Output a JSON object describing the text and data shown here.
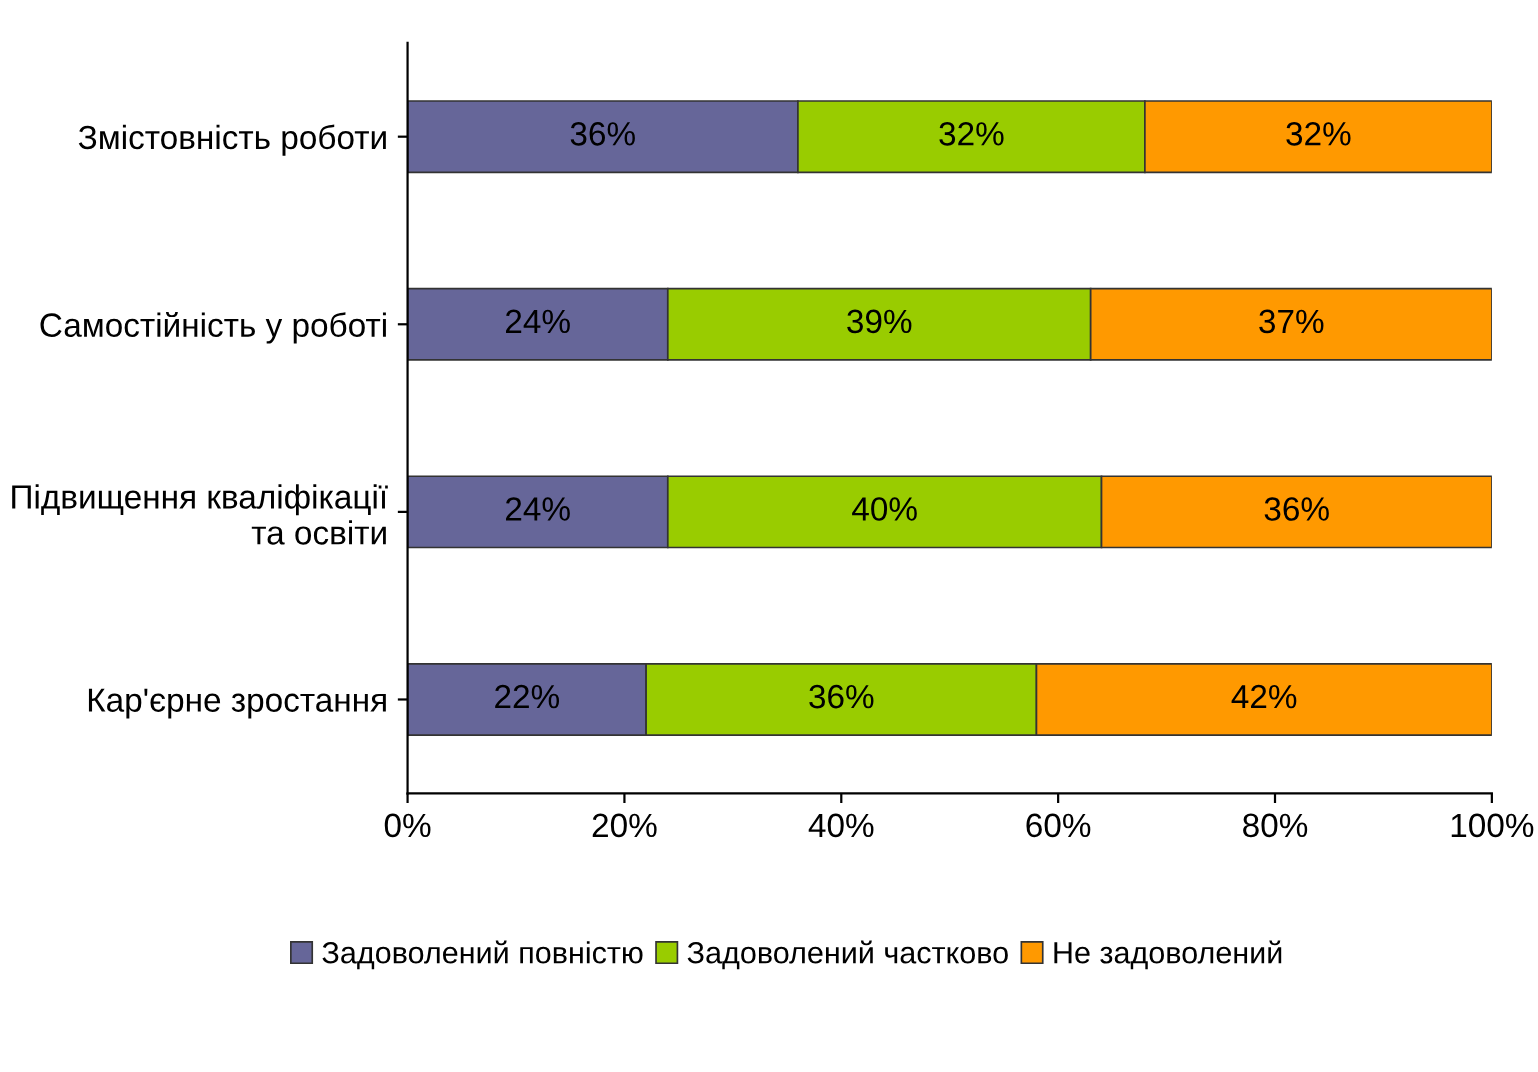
{
  "chart_data": {
    "type": "bar",
    "orientation": "horizontal",
    "stacked": true,
    "categories": [
      "Змістовність роботи",
      "Самостійність у роботі",
      "Підвищення кваліфікації\nта освіти",
      "Кар'єрне зростання"
    ],
    "series": [
      {
        "name": "Задоволений повністю",
        "color": "#666699",
        "values": [
          36,
          24,
          24,
          22
        ],
        "value_labels": [
          "36%",
          "24%",
          "24%",
          "22%"
        ]
      },
      {
        "name": "Задоволений частково",
        "color": "#99cc00",
        "values": [
          32,
          39,
          40,
          36
        ],
        "value_labels": [
          "32%",
          "39%",
          "40%",
          "36%"
        ]
      },
      {
        "name": "Не задоволений",
        "color": "#ff9900",
        "values": [
          32,
          37,
          36,
          42
        ],
        "value_labels": [
          "32%",
          "37%",
          "36%",
          "42%"
        ]
      }
    ],
    "xlim": [
      0,
      100
    ],
    "xticks": [
      {
        "value": 0,
        "label": "0%"
      },
      {
        "value": 20,
        "label": "20%"
      },
      {
        "value": 40,
        "label": "40%"
      },
      {
        "value": 60,
        "label": "60%"
      },
      {
        "value": 80,
        "label": "80%"
      },
      {
        "value": 100,
        "label": "100%"
      }
    ],
    "legend": "bottom",
    "grid": false
  }
}
